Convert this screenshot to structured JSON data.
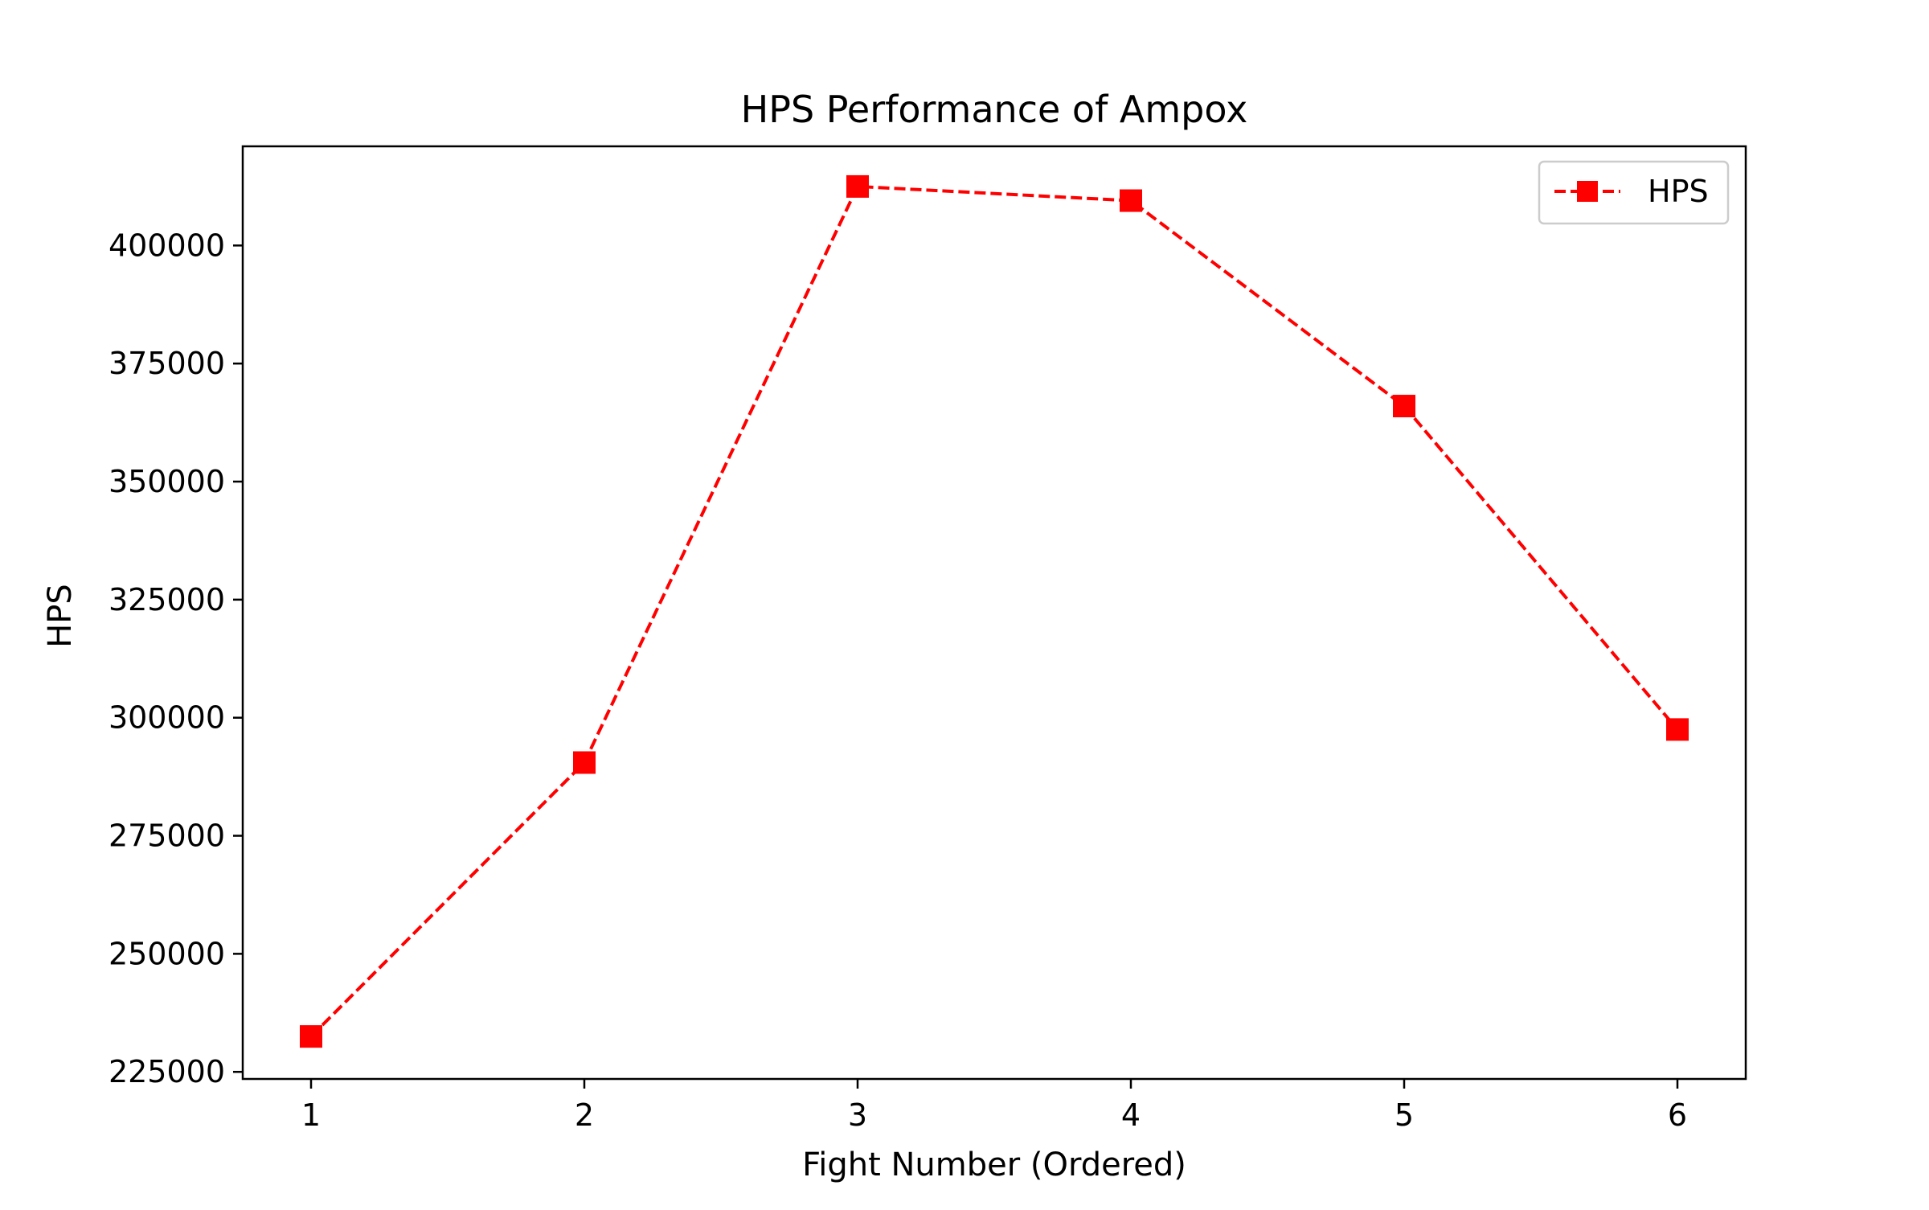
{
  "chart_data": {
    "type": "line",
    "title": "HPS Performance of Ampox",
    "xlabel": "Fight Number (Ordered)",
    "ylabel": "HPS",
    "x": [
      1,
      2,
      3,
      4,
      5,
      6
    ],
    "xticks": [
      "1",
      "2",
      "3",
      "4",
      "5",
      "6"
    ],
    "yticks": [
      "225000",
      "250000",
      "275000",
      "300000",
      "325000",
      "350000",
      "375000",
      "400000"
    ],
    "xlim": [
      0.75,
      6.25
    ],
    "ylim": [
      223500,
      421000
    ],
    "grid": false,
    "legend_position": "top-right",
    "series": [
      {
        "name": "HPS",
        "values": [
          232500,
          290500,
          412500,
          409500,
          366000,
          297500
        ],
        "color": "#ff0000",
        "line_style": "dashed",
        "marker": "square"
      }
    ]
  }
}
